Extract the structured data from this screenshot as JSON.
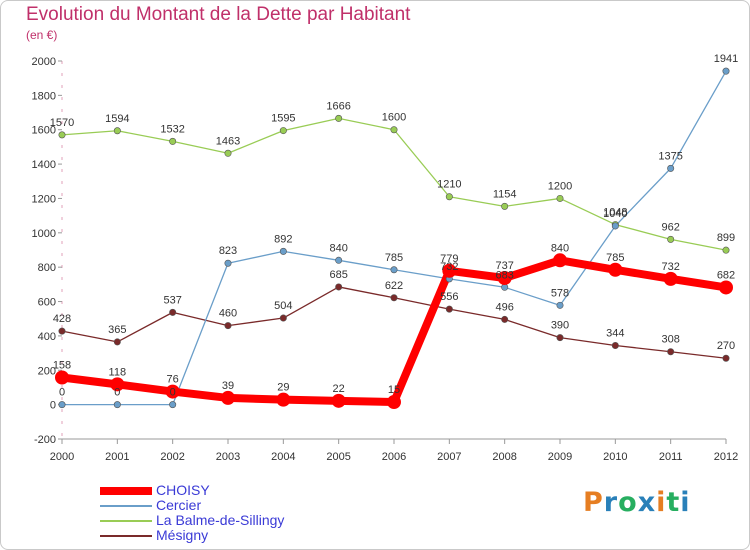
{
  "title": "Evolution du Montant de la Dette par Habitant",
  "unit_label": "(en €)",
  "brand": {
    "text": "Proxiti",
    "letters": [
      {
        "ch": "P",
        "color": "#e67e22"
      },
      {
        "ch": "r",
        "color": "#2980b9"
      },
      {
        "ch": "o",
        "color": "#27ae60"
      },
      {
        "ch": "x",
        "color": "#2980b9"
      },
      {
        "ch": "i",
        "color": "#e67e22"
      },
      {
        "ch": "t",
        "color": "#27ae60"
      },
      {
        "ch": "i",
        "color": "#2980b9"
      }
    ]
  },
  "chart_data": {
    "type": "line",
    "title": "Evolution du Montant de la Dette par Habitant",
    "ylabel": "(en €)",
    "xlabel": "",
    "x": [
      2000,
      2001,
      2002,
      2003,
      2004,
      2005,
      2006,
      2007,
      2008,
      2009,
      2010,
      2011,
      2012
    ],
    "ylim": [
      -200,
      2000
    ],
    "yticks": [
      -200,
      0,
      200,
      400,
      600,
      800,
      1000,
      1200,
      1400,
      1600,
      1800,
      2000
    ],
    "grid": false,
    "legend_position": "bottom-left",
    "series": [
      {
        "name": "CHOISY",
        "color": "#ff0000",
        "values": [
          158,
          118,
          76,
          39,
          29,
          22,
          15,
          779,
          737,
          840,
          785,
          732,
          682
        ]
      },
      {
        "name": "Cercier",
        "color": "#6a9ec9",
        "values": [
          0,
          0,
          0,
          823,
          892,
          840,
          785,
          732,
          683,
          578,
          1040,
          1375,
          1941
        ]
      },
      {
        "name": "La Balme-de-Sillingy",
        "color": "#99cc55",
        "values": [
          1570,
          1594,
          1532,
          1463,
          1595,
          1666,
          1600,
          1210,
          1154,
          1200,
          1048,
          962,
          899
        ]
      },
      {
        "name": "Mésigny",
        "color": "#7a2a2a",
        "values": [
          428,
          365,
          537,
          460,
          504,
          685,
          622,
          556,
          496,
          390,
          344,
          308,
          270
        ]
      }
    ]
  }
}
